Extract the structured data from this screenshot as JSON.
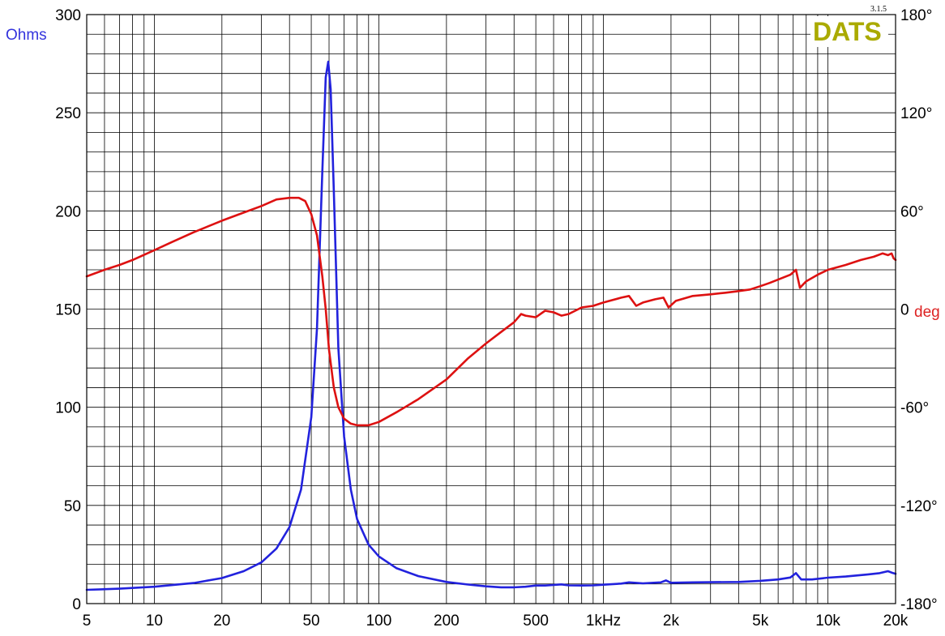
{
  "chart_data": {
    "type": "line",
    "x_scale": "log",
    "xlim": [
      5,
      20000
    ],
    "x_ticks": [
      {
        "value": 5,
        "label": "5"
      },
      {
        "value": 10,
        "label": "10"
      },
      {
        "value": 20,
        "label": "20"
      },
      {
        "value": 50,
        "label": "50"
      },
      {
        "value": 100,
        "label": "100"
      },
      {
        "value": 200,
        "label": "200"
      },
      {
        "value": 500,
        "label": "500"
      },
      {
        "value": 1000,
        "label": "1kHz"
      },
      {
        "value": 2000,
        "label": "2k"
      },
      {
        "value": 5000,
        "label": "5k"
      },
      {
        "value": 10000,
        "label": "10k"
      },
      {
        "value": 20000,
        "label": "20k"
      }
    ],
    "y_left": {
      "label": "Ohms",
      "lim": [
        0,
        300
      ],
      "ticks": [
        {
          "value": 0,
          "label": "0"
        },
        {
          "value": 50,
          "label": "50"
        },
        {
          "value": 100,
          "label": "100"
        },
        {
          "value": 150,
          "label": "150"
        },
        {
          "value": 200,
          "label": "200"
        },
        {
          "value": 250,
          "label": "250"
        },
        {
          "value": 300,
          "label": "300"
        }
      ],
      "minor_step": 10
    },
    "y_right": {
      "label": "deg",
      "lim": [
        -180,
        180
      ],
      "ticks": [
        {
          "value": 180,
          "label": "180°"
        },
        {
          "value": 120,
          "label": "120°"
        },
        {
          "value": 60,
          "label": "60°"
        },
        {
          "value": 0,
          "label": "0"
        },
        {
          "value": -60,
          "label": "-60°"
        },
        {
          "value": -120,
          "label": "-120°"
        },
        {
          "value": -180,
          "label": "-180°"
        }
      ]
    },
    "grid": true,
    "series": [
      {
        "color": "#2222dd",
        "axis": "left",
        "points": [
          [
            5,
            7
          ],
          [
            7,
            7.6
          ],
          [
            10,
            8.6
          ],
          [
            15,
            10.5
          ],
          [
            20,
            13
          ],
          [
            25,
            16.5
          ],
          [
            30,
            21
          ],
          [
            35,
            28
          ],
          [
            40,
            39
          ],
          [
            45,
            58
          ],
          [
            50,
            95
          ],
          [
            53,
            140
          ],
          [
            56,
            220
          ],
          [
            58,
            268
          ],
          [
            59.5,
            276
          ],
          [
            61,
            262
          ],
          [
            63,
            210
          ],
          [
            66,
            130
          ],
          [
            70,
            85
          ],
          [
            75,
            58
          ],
          [
            80,
            43
          ],
          [
            90,
            30
          ],
          [
            100,
            24
          ],
          [
            120,
            18
          ],
          [
            150,
            14
          ],
          [
            200,
            11
          ],
          [
            250,
            9.7
          ],
          [
            300,
            8.8
          ],
          [
            350,
            8.3
          ],
          [
            400,
            8.3
          ],
          [
            450,
            8.6
          ],
          [
            500,
            9.2
          ],
          [
            550,
            9.2
          ],
          [
            600,
            9.5
          ],
          [
            650,
            9.8
          ],
          [
            700,
            9.3
          ],
          [
            800,
            9.2
          ],
          [
            900,
            9.3
          ],
          [
            1000,
            9.6
          ],
          [
            1200,
            10.2
          ],
          [
            1300,
            10.8
          ],
          [
            1500,
            10.3
          ],
          [
            1800,
            10.8
          ],
          [
            1900,
            11.8
          ],
          [
            2000,
            10.6
          ],
          [
            2500,
            10.8
          ],
          [
            3000,
            10.9
          ],
          [
            4000,
            11.0
          ],
          [
            5000,
            11.6
          ],
          [
            6000,
            12.3
          ],
          [
            6800,
            13.3
          ],
          [
            7200,
            15.5
          ],
          [
            7600,
            12.3
          ],
          [
            8500,
            12.3
          ],
          [
            10000,
            13.2
          ],
          [
            12000,
            13.8
          ],
          [
            15000,
            14.8
          ],
          [
            17000,
            15.5
          ],
          [
            18500,
            16.5
          ],
          [
            19200,
            15.8
          ],
          [
            20000,
            15.2
          ]
        ]
      },
      {
        "color": "#dd1111",
        "axis": "right",
        "points": [
          [
            5,
            20
          ],
          [
            6,
            24
          ],
          [
            7,
            27
          ],
          [
            8,
            30
          ],
          [
            10,
            36
          ],
          [
            12,
            41
          ],
          [
            15,
            47
          ],
          [
            20,
            54
          ],
          [
            25,
            59
          ],
          [
            30,
            63
          ],
          [
            35,
            67
          ],
          [
            40,
            68
          ],
          [
            44,
            68
          ],
          [
            47,
            66
          ],
          [
            50,
            58
          ],
          [
            53,
            45
          ],
          [
            56,
            20
          ],
          [
            58,
            0
          ],
          [
            60,
            -25
          ],
          [
            63,
            -48
          ],
          [
            66,
            -60
          ],
          [
            70,
            -67
          ],
          [
            75,
            -70
          ],
          [
            80,
            -71
          ],
          [
            90,
            -71
          ],
          [
            100,
            -69
          ],
          [
            120,
            -63
          ],
          [
            150,
            -55
          ],
          [
            200,
            -43
          ],
          [
            250,
            -30
          ],
          [
            300,
            -21
          ],
          [
            350,
            -14
          ],
          [
            400,
            -8
          ],
          [
            430,
            -3
          ],
          [
            450,
            -4
          ],
          [
            500,
            -5
          ],
          [
            550,
            -1
          ],
          [
            600,
            -2
          ],
          [
            650,
            -4
          ],
          [
            700,
            -3
          ],
          [
            800,
            1
          ],
          [
            900,
            2
          ],
          [
            1000,
            4
          ],
          [
            1200,
            7
          ],
          [
            1300,
            8
          ],
          [
            1400,
            2
          ],
          [
            1500,
            4
          ],
          [
            1700,
            6
          ],
          [
            1850,
            7
          ],
          [
            1950,
            1
          ],
          [
            2100,
            5
          ],
          [
            2500,
            8
          ],
          [
            3000,
            9
          ],
          [
            3500,
            10
          ],
          [
            4000,
            11
          ],
          [
            4500,
            12
          ],
          [
            5000,
            14
          ],
          [
            5500,
            16
          ],
          [
            6000,
            18
          ],
          [
            6800,
            21
          ],
          [
            7200,
            24
          ],
          [
            7500,
            13
          ],
          [
            8000,
            17
          ],
          [
            9000,
            21
          ],
          [
            10000,
            24
          ],
          [
            12000,
            27
          ],
          [
            14000,
            30
          ],
          [
            16000,
            32
          ],
          [
            17500,
            34
          ],
          [
            18500,
            33
          ],
          [
            19200,
            34
          ],
          [
            19600,
            31
          ],
          [
            20000,
            30
          ]
        ]
      }
    ]
  },
  "brand": {
    "name": "DATS",
    "version": "3.1.5",
    "color": "#aaaa00"
  }
}
